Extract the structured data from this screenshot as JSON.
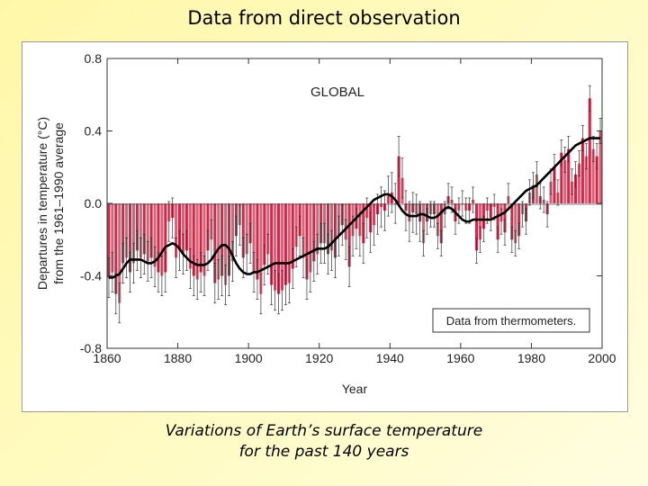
{
  "slide": {
    "title": "Data from direct observation",
    "caption_line1": "Variations of Earth’s surface temperature",
    "caption_line2": "for the past 140 years"
  },
  "colors": {
    "bar": "#c8203e",
    "bar_light": "#e57b8e",
    "smooth": "#000000",
    "error": "#333333"
  },
  "chart_data": {
    "type": "bar",
    "title": "GLOBAL",
    "xlabel": "Year",
    "ylabel_line1": "Departures in temperature (°C)",
    "ylabel_line2": "from the 1961–1990 average",
    "legend_text": "Data from thermometers.",
    "xlim": [
      1860,
      2000
    ],
    "ylim": [
      -0.8,
      0.8
    ],
    "xticks": [
      "1860",
      "1880",
      "1900",
      "1920",
      "1940",
      "1960",
      "1980",
      "2000"
    ],
    "yticks": [
      "0.8",
      "0.4",
      "0.0",
      "-0.4",
      "-0.8"
    ],
    "years_start": 1861,
    "years_end": 2000,
    "values": [
      -0.41,
      -0.38,
      -0.5,
      -0.55,
      -0.33,
      -0.3,
      -0.38,
      -0.33,
      -0.26,
      -0.3,
      -0.28,
      -0.32,
      -0.3,
      -0.35,
      -0.38,
      -0.4,
      -0.38,
      -0.1,
      -0.08,
      -0.3,
      -0.26,
      -0.28,
      -0.26,
      -0.36,
      -0.4,
      -0.42,
      -0.38,
      -0.4,
      -0.26,
      -0.2,
      -0.44,
      -0.42,
      -0.4,
      -0.45,
      -0.4,
      -0.32,
      -0.18,
      -0.12,
      -0.3,
      -0.28,
      -0.22,
      -0.38,
      -0.42,
      -0.5,
      -0.34,
      -0.28,
      -0.45,
      -0.48,
      -0.5,
      -0.48,
      -0.45,
      -0.44,
      -0.36,
      -0.24,
      -0.18,
      -0.3,
      -0.42,
      -0.38,
      -0.32,
      -0.28,
      -0.22,
      -0.22,
      -0.28,
      -0.26,
      -0.3,
      -0.18,
      -0.12,
      -0.2,
      -0.35,
      -0.18,
      -0.14,
      -0.18,
      -0.22,
      -0.08,
      -0.16,
      -0.12,
      -0.06,
      -0.02,
      -0.04,
      0.04,
      0.06,
      0.0,
      0.26,
      0.14,
      -0.04,
      -0.1,
      -0.05,
      -0.06,
      -0.1,
      -0.22,
      -0.1,
      -0.06,
      -0.06,
      -0.18,
      -0.22,
      -0.06,
      0.04,
      0.02,
      -0.1,
      -0.04,
      0.0,
      -0.04,
      -0.04,
      0.02,
      -0.26,
      -0.2,
      -0.14,
      -0.04,
      -0.08,
      -0.02,
      -0.2,
      -0.1,
      -0.16,
      0.04,
      -0.2,
      -0.22,
      -0.18,
      -0.06,
      -0.1,
      0.06,
      0.1,
      0.16,
      0.04,
      0.02,
      -0.06,
      0.12,
      0.2,
      0.06,
      0.28,
      0.24,
      0.3,
      0.12,
      0.16,
      0.22,
      0.36,
      0.26,
      0.58,
      0.3,
      0.26,
      0.4
    ],
    "smooth": [
      -0.41,
      -0.41,
      -0.4,
      -0.39,
      -0.36,
      -0.33,
      -0.31,
      -0.31,
      -0.31,
      -0.31,
      -0.32,
      -0.33,
      -0.33,
      -0.32,
      -0.3,
      -0.27,
      -0.24,
      -0.23,
      -0.22,
      -0.23,
      -0.25,
      -0.28,
      -0.3,
      -0.32,
      -0.33,
      -0.34,
      -0.34,
      -0.34,
      -0.33,
      -0.31,
      -0.28,
      -0.25,
      -0.23,
      -0.23,
      -0.25,
      -0.29,
      -0.33,
      -0.36,
      -0.38,
      -0.39,
      -0.39,
      -0.38,
      -0.38,
      -0.37,
      -0.36,
      -0.35,
      -0.34,
      -0.33,
      -0.33,
      -0.33,
      -0.33,
      -0.33,
      -0.32,
      -0.31,
      -0.3,
      -0.29,
      -0.28,
      -0.27,
      -0.26,
      -0.25,
      -0.25,
      -0.25,
      -0.24,
      -0.22,
      -0.2,
      -0.18,
      -0.16,
      -0.14,
      -0.12,
      -0.1,
      -0.08,
      -0.06,
      -0.04,
      -0.02,
      0.0,
      0.02,
      0.03,
      0.04,
      0.05,
      0.05,
      0.04,
      0.02,
      -0.01,
      -0.04,
      -0.06,
      -0.07,
      -0.07,
      -0.07,
      -0.06,
      -0.06,
      -0.07,
      -0.08,
      -0.08,
      -0.07,
      -0.05,
      -0.03,
      -0.02,
      -0.03,
      -0.05,
      -0.07,
      -0.09,
      -0.1,
      -0.1,
      -0.09,
      -0.09,
      -0.09,
      -0.09,
      -0.09,
      -0.09,
      -0.08,
      -0.07,
      -0.06,
      -0.05,
      -0.03,
      -0.01,
      0.01,
      0.03,
      0.05,
      0.07,
      0.08,
      0.09,
      0.1,
      0.12,
      0.14,
      0.16,
      0.18,
      0.2,
      0.22,
      0.24,
      0.26,
      0.28,
      0.3,
      0.32,
      0.33,
      0.34,
      0.35,
      0.36,
      0.36,
      0.36,
      0.36
    ]
  }
}
